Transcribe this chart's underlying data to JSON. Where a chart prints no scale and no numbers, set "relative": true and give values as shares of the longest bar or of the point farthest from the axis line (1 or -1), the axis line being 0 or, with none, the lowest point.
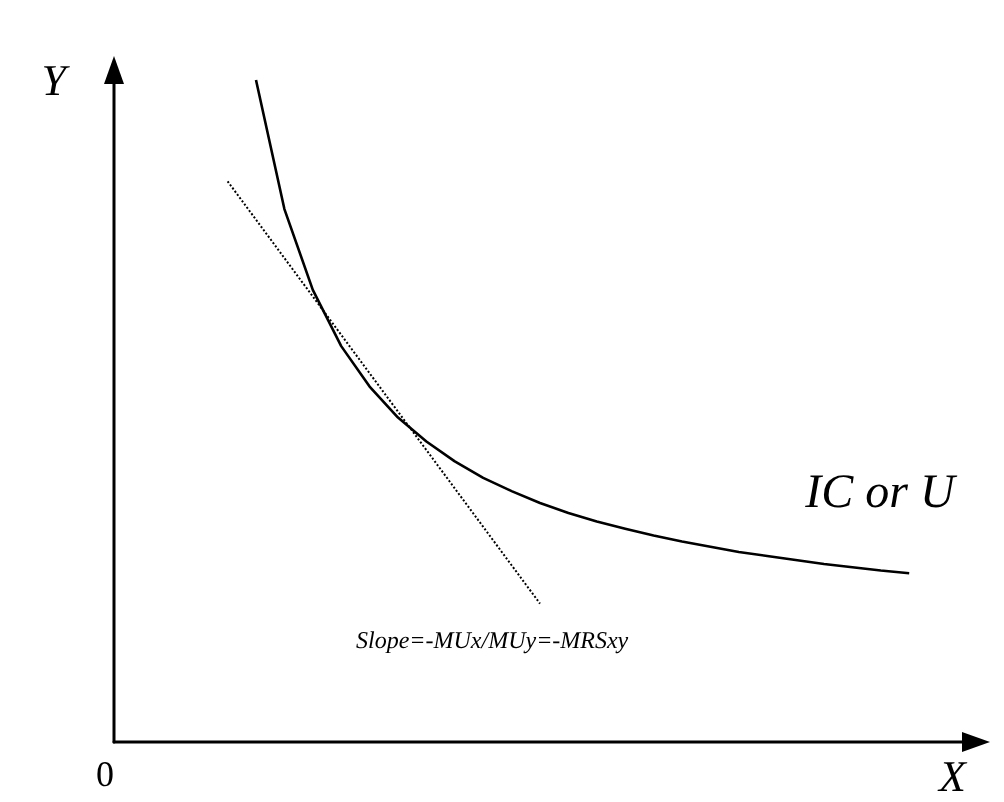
{
  "chart_data": {
    "type": "line",
    "relative": true,
    "xlabel": "X",
    "ylabel": "Y",
    "tick_labels": false,
    "grid": false,
    "legend": false,
    "marker": "none",
    "categories": [
      null,
      null,
      null,
      null,
      null,
      null,
      null,
      null,
      null,
      null,
      null,
      null,
      null,
      null,
      null,
      null,
      null,
      null,
      null,
      null,
      null,
      null,
      null,
      null,
      null,
      null,
      null,
      null,
      null,
      null,
      null
    ],
    "series": [
      {
        "name": "IC or U",
        "color": "#000000",
        "line_style": "solid",
        "values": [
          null,
          null,
          null,
          null,
          null,
          1.0,
          0.805,
          0.683,
          0.598,
          0.537,
          0.49,
          0.454,
          0.424,
          0.399,
          0.379,
          0.361,
          0.346,
          0.333,
          0.322,
          0.312,
          0.303,
          0.295,
          0.287,
          0.281,
          0.275,
          0.269,
          0.264,
          0.259,
          0.255,
          null,
          null
        ]
      },
      {
        "name": "Slope=-MUx/MUy=-MRSxy",
        "color": "#000000",
        "line_style": "dotted",
        "values": [
          null,
          null,
          null,
          null,
          0.847,
          0.789,
          0.731,
          0.673,
          0.615,
          0.557,
          0.499,
          0.441,
          0.383,
          0.325,
          0.267,
          0.209,
          null,
          null,
          null,
          null,
          null,
          null,
          null,
          null,
          null,
          null,
          null,
          null,
          null,
          null,
          null
        ]
      }
    ],
    "annotations": [
      "0"
    ]
  }
}
